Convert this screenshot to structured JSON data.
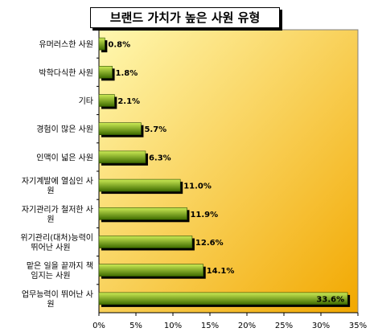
{
  "chart_data": {
    "type": "bar",
    "orientation": "horizontal",
    "title": "브랜드 가치가 높은 사원 유형",
    "categories": [
      "유머러스한 사원",
      "박학다식한 사원",
      "기타",
      "경험이 많은 사원",
      "인맥이 넓은 사원",
      "자기계발에 열심인 사원",
      "자기관리가 철저한 사원",
      "위기관리(대처)능력이 뛰어난 사원",
      "맡은 일을 끝까지 책임지는 사원",
      "업무능력이 뛰어난 사원"
    ],
    "category_lines": [
      [
        "유머러스한 사원"
      ],
      [
        "박학다식한 사원"
      ],
      [
        "기타"
      ],
      [
        "경험이 많은 사원"
      ],
      [
        "인맥이 넓은 사원"
      ],
      [
        "자기계발에 열심인 사",
        "원"
      ],
      [
        "자기관리가 철저한 사",
        "원"
      ],
      [
        "위기관리(대처)능력이",
        "뛰어난 사원"
      ],
      [
        "맡은 일을 끝까지 책",
        "임지는 사원"
      ],
      [
        "업무능력이 뛰어난 사",
        "원"
      ]
    ],
    "values": [
      0.8,
      1.8,
      2.1,
      5.7,
      6.3,
      11.0,
      11.9,
      12.6,
      14.1,
      33.6
    ],
    "value_labels": [
      "0.8%",
      "1.8%",
      "2.1%",
      "5.7%",
      "6.3%",
      "11.0%",
      "11.9%",
      "12.6%",
      "14.1%",
      "33.6%"
    ],
    "xlim": [
      0,
      35
    ],
    "xticks": [
      0,
      5,
      10,
      15,
      20,
      25,
      30,
      35
    ],
    "xtick_labels": [
      "0%",
      "5%",
      "10%",
      "15%",
      "20%",
      "25%",
      "30%",
      "35%"
    ],
    "grid": false,
    "legend": "none",
    "colors": {
      "plot_bg_light": "#FFF8B0",
      "plot_bg_dark": "#F2A800",
      "bar_light": "#CCEB55",
      "bar_dark": "#3E6B00",
      "bar_shadow": "#000000"
    }
  }
}
